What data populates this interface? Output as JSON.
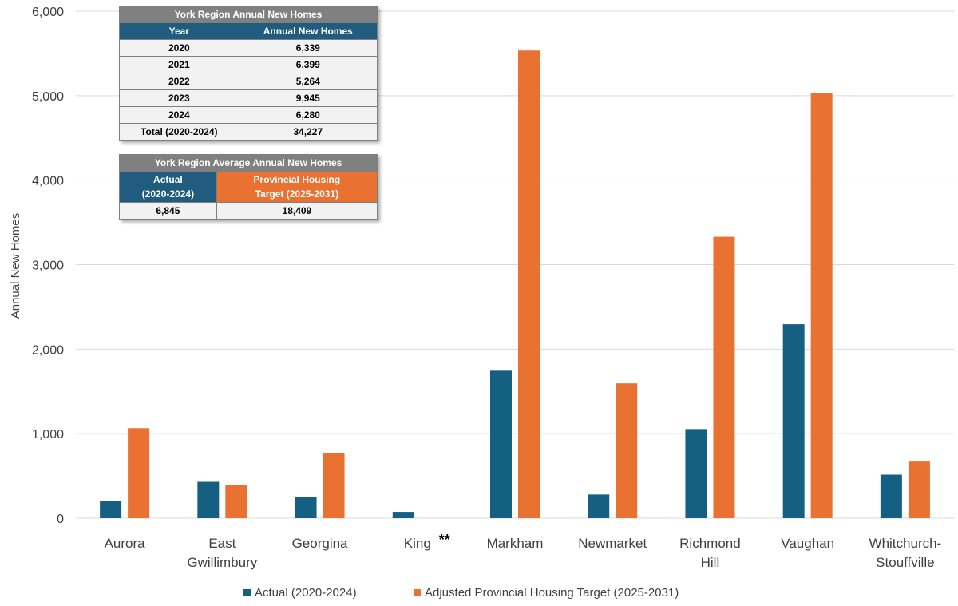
{
  "chart_data": {
    "type": "bar",
    "categories": [
      "Aurora",
      "East Gwillimbury",
      "Georgina",
      "King",
      "Markham",
      "Newmarket",
      "Richmond Hill",
      "Vaughan",
      "Whitchurch-Stouffville"
    ],
    "category_lines": [
      [
        "Aurora"
      ],
      [
        "East",
        "Gwillimbury"
      ],
      [
        "Georgina"
      ],
      [
        "King"
      ],
      [
        "Markham"
      ],
      [
        "Newmarket"
      ],
      [
        "Richmond",
        "Hill"
      ],
      [
        "Vaughan"
      ],
      [
        "Whitchurch-",
        "Stouffville"
      ]
    ],
    "series": [
      {
        "name": "Actual (2020-2024)",
        "color": "#156082",
        "values": [
          200,
          430,
          255,
          75,
          1745,
          280,
          1055,
          2295,
          515
        ]
      },
      {
        "name": "Adjusted Provincial Housing Target (2025-2031)",
        "color": "#e97132",
        "values": [
          1065,
          395,
          775,
          0,
          5535,
          1595,
          3330,
          5030,
          670
        ]
      }
    ],
    "ylabel": "Annual New Homes",
    "ylim": [
      0,
      6000
    ],
    "yticks": [
      0,
      1000,
      2000,
      3000,
      4000,
      5000,
      6000
    ],
    "ytick_labels": [
      "0",
      "1,000",
      "2,000",
      "3,000",
      "4,000",
      "5,000",
      "6,000"
    ],
    "grid": true,
    "legend": "bottom",
    "annotation": {
      "category": "King",
      "text": "**"
    }
  },
  "table_annual": {
    "title": "York Region Annual New Homes",
    "headers": [
      "Year",
      "Annual New Homes"
    ],
    "rows": [
      [
        "2020",
        "6,339"
      ],
      [
        "2021",
        "6,399"
      ],
      [
        "2022",
        "5,264"
      ],
      [
        "2023",
        "9,945"
      ],
      [
        "2024",
        "6,280"
      ],
      [
        "Total (2020-2024)",
        "34,227"
      ]
    ]
  },
  "table_average": {
    "title": "York Region Average Annual New Homes",
    "header_actual": [
      "Actual",
      "(2020-2024)"
    ],
    "header_target": [
      "Provincial Housing",
      "Target (2025-2031)"
    ],
    "values": [
      "6,845",
      "18,409"
    ]
  }
}
